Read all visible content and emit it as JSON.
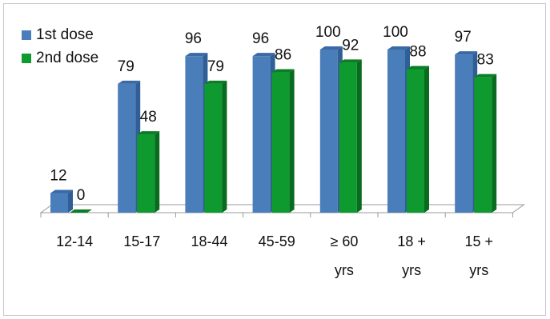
{
  "chart_data": {
    "type": "bar",
    "categories": [
      [
        "12-14"
      ],
      [
        "15-17"
      ],
      [
        "18-44"
      ],
      [
        "45-59"
      ],
      [
        "≥ 60",
        "yrs"
      ],
      [
        "18 +",
        "yrs"
      ],
      [
        "15 +",
        "yrs"
      ]
    ],
    "series": [
      {
        "name": "1st dose",
        "values": [
          12,
          79,
          96,
          96,
          100,
          100,
          97
        ],
        "color": "#4a7ebb",
        "side_color": "#2f5f96",
        "top_color": "#3a6aa6"
      },
      {
        "name": "2nd dose",
        "values": [
          0,
          48,
          79,
          86,
          92,
          88,
          83
        ],
        "color": "#0e9a2f",
        "side_color": "#086b1f",
        "top_color": "#0a7d25"
      }
    ],
    "ylim": [
      0,
      100
    ],
    "legend_position": "top-left",
    "grid": false,
    "three_d": true
  }
}
